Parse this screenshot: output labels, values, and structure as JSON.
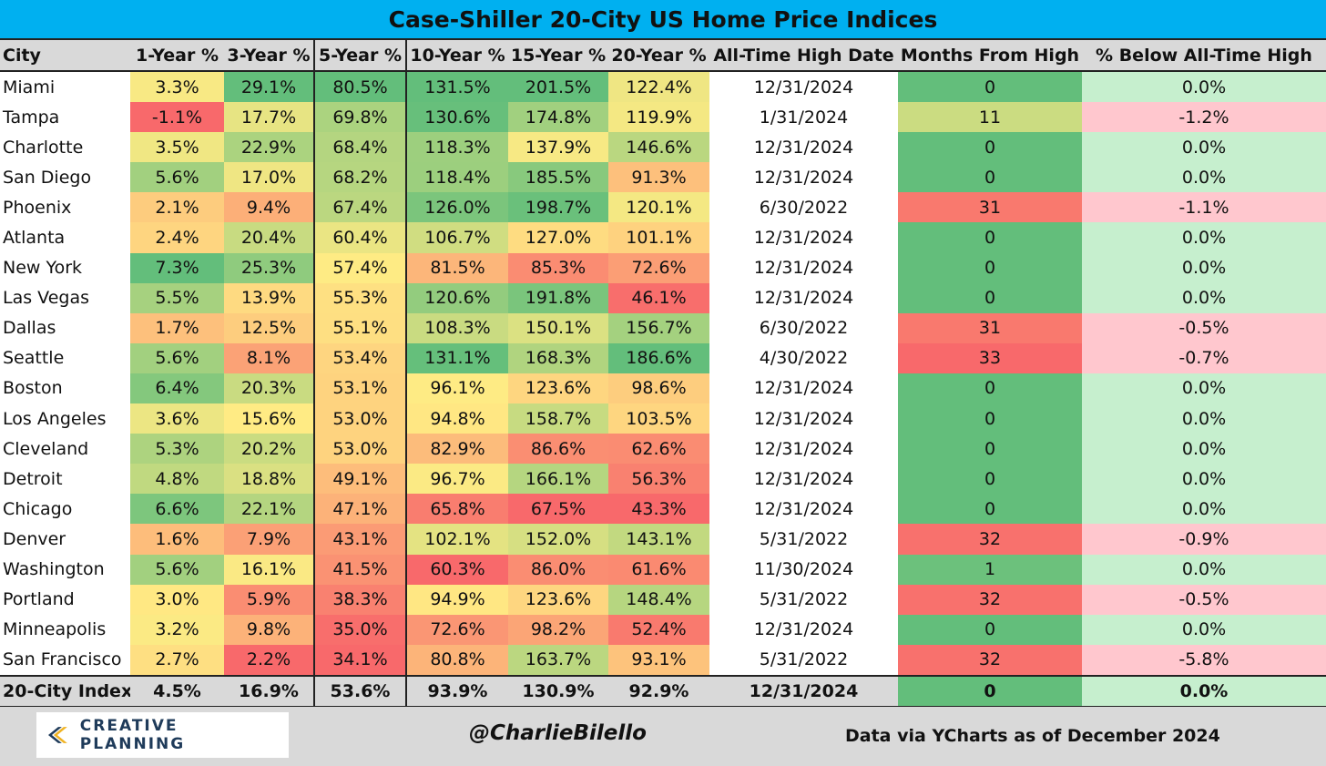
{
  "title": "Case-Shiller 20-City US Home Price Indices",
  "headers": [
    "City",
    "1-Year %",
    "3-Year %",
    "5-Year %",
    "10-Year %",
    "15-Year %",
    "20-Year %",
    "All-Time High Date",
    "Months From High",
    "% Below All-Time High"
  ],
  "rows": [
    [
      "Miami",
      "3.3%",
      "29.1%",
      "80.5%",
      "131.5%",
      "201.5%",
      "122.4%",
      "12/31/2024",
      "0",
      "0.0%"
    ],
    [
      "Tampa",
      "-1.1%",
      "17.7%",
      "69.8%",
      "130.6%",
      "174.8%",
      "119.9%",
      "1/31/2024",
      "11",
      "-1.2%"
    ],
    [
      "Charlotte",
      "3.5%",
      "22.9%",
      "68.4%",
      "118.3%",
      "137.9%",
      "146.6%",
      "12/31/2024",
      "0",
      "0.0%"
    ],
    [
      "San Diego",
      "5.6%",
      "17.0%",
      "68.2%",
      "118.4%",
      "185.5%",
      "91.3%",
      "12/31/2024",
      "0",
      "0.0%"
    ],
    [
      "Phoenix",
      "2.1%",
      "9.4%",
      "67.4%",
      "126.0%",
      "198.7%",
      "120.1%",
      "6/30/2022",
      "31",
      "-1.1%"
    ],
    [
      "Atlanta",
      "2.4%",
      "20.4%",
      "60.4%",
      "106.7%",
      "127.0%",
      "101.1%",
      "12/31/2024",
      "0",
      "0.0%"
    ],
    [
      "New York",
      "7.3%",
      "25.3%",
      "57.4%",
      "81.5%",
      "85.3%",
      "72.6%",
      "12/31/2024",
      "0",
      "0.0%"
    ],
    [
      "Las Vegas",
      "5.5%",
      "13.9%",
      "55.3%",
      "120.6%",
      "191.8%",
      "46.1%",
      "12/31/2024",
      "0",
      "0.0%"
    ],
    [
      "Dallas",
      "1.7%",
      "12.5%",
      "55.1%",
      "108.3%",
      "150.1%",
      "156.7%",
      "6/30/2022",
      "31",
      "-0.5%"
    ],
    [
      "Seattle",
      "5.6%",
      "8.1%",
      "53.4%",
      "131.1%",
      "168.3%",
      "186.6%",
      "4/30/2022",
      "33",
      "-0.7%"
    ],
    [
      "Boston",
      "6.4%",
      "20.3%",
      "53.1%",
      "96.1%",
      "123.6%",
      "98.6%",
      "12/31/2024",
      "0",
      "0.0%"
    ],
    [
      "Los Angeles",
      "3.6%",
      "15.6%",
      "53.0%",
      "94.8%",
      "158.7%",
      "103.5%",
      "12/31/2024",
      "0",
      "0.0%"
    ],
    [
      "Cleveland",
      "5.3%",
      "20.2%",
      "53.0%",
      "82.9%",
      "86.6%",
      "62.6%",
      "12/31/2024",
      "0",
      "0.0%"
    ],
    [
      "Detroit",
      "4.8%",
      "18.8%",
      "49.1%",
      "96.7%",
      "166.1%",
      "56.3%",
      "12/31/2024",
      "0",
      "0.0%"
    ],
    [
      "Chicago",
      "6.6%",
      "22.1%",
      "47.1%",
      "65.8%",
      "67.5%",
      "43.3%",
      "12/31/2024",
      "0",
      "0.0%"
    ],
    [
      "Denver",
      "1.6%",
      "7.9%",
      "43.1%",
      "102.1%",
      "152.0%",
      "143.1%",
      "5/31/2022",
      "32",
      "-0.9%"
    ],
    [
      "Washington",
      "5.6%",
      "16.1%",
      "41.5%",
      "60.3%",
      "86.0%",
      "61.6%",
      "11/30/2024",
      "1",
      "0.0%"
    ],
    [
      "Portland",
      "3.0%",
      "5.9%",
      "38.3%",
      "94.9%",
      "123.6%",
      "148.4%",
      "5/31/2022",
      "32",
      "-0.5%"
    ],
    [
      "Minneapolis",
      "3.2%",
      "9.8%",
      "35.0%",
      "72.6%",
      "98.2%",
      "52.4%",
      "12/31/2024",
      "0",
      "0.0%"
    ],
    [
      "San Francisco",
      "2.7%",
      "2.2%",
      "34.1%",
      "80.8%",
      "163.7%",
      "93.1%",
      "5/31/2022",
      "32",
      "-5.8%"
    ]
  ],
  "total": [
    "20-City Index",
    "4.5%",
    "16.9%",
    "53.6%",
    "93.9%",
    "130.9%",
    "92.9%",
    "12/31/2024",
    "0",
    "0.0%"
  ],
  "footer": {
    "logo_text": "CREATIVE PLANNING",
    "handle": "@CharlieBilello",
    "source": "Data via YCharts as of December 2024"
  },
  "colors": {
    "title_bg": "#00b0f0",
    "header_bg": "#d9d9d9",
    "scale_low": "#f8696b",
    "scale_mid": "#ffeb84",
    "scale_high": "#63be7b",
    "below_zero_bg": "#ffc7ce",
    "below_ok_bg": "#c6efce"
  }
}
